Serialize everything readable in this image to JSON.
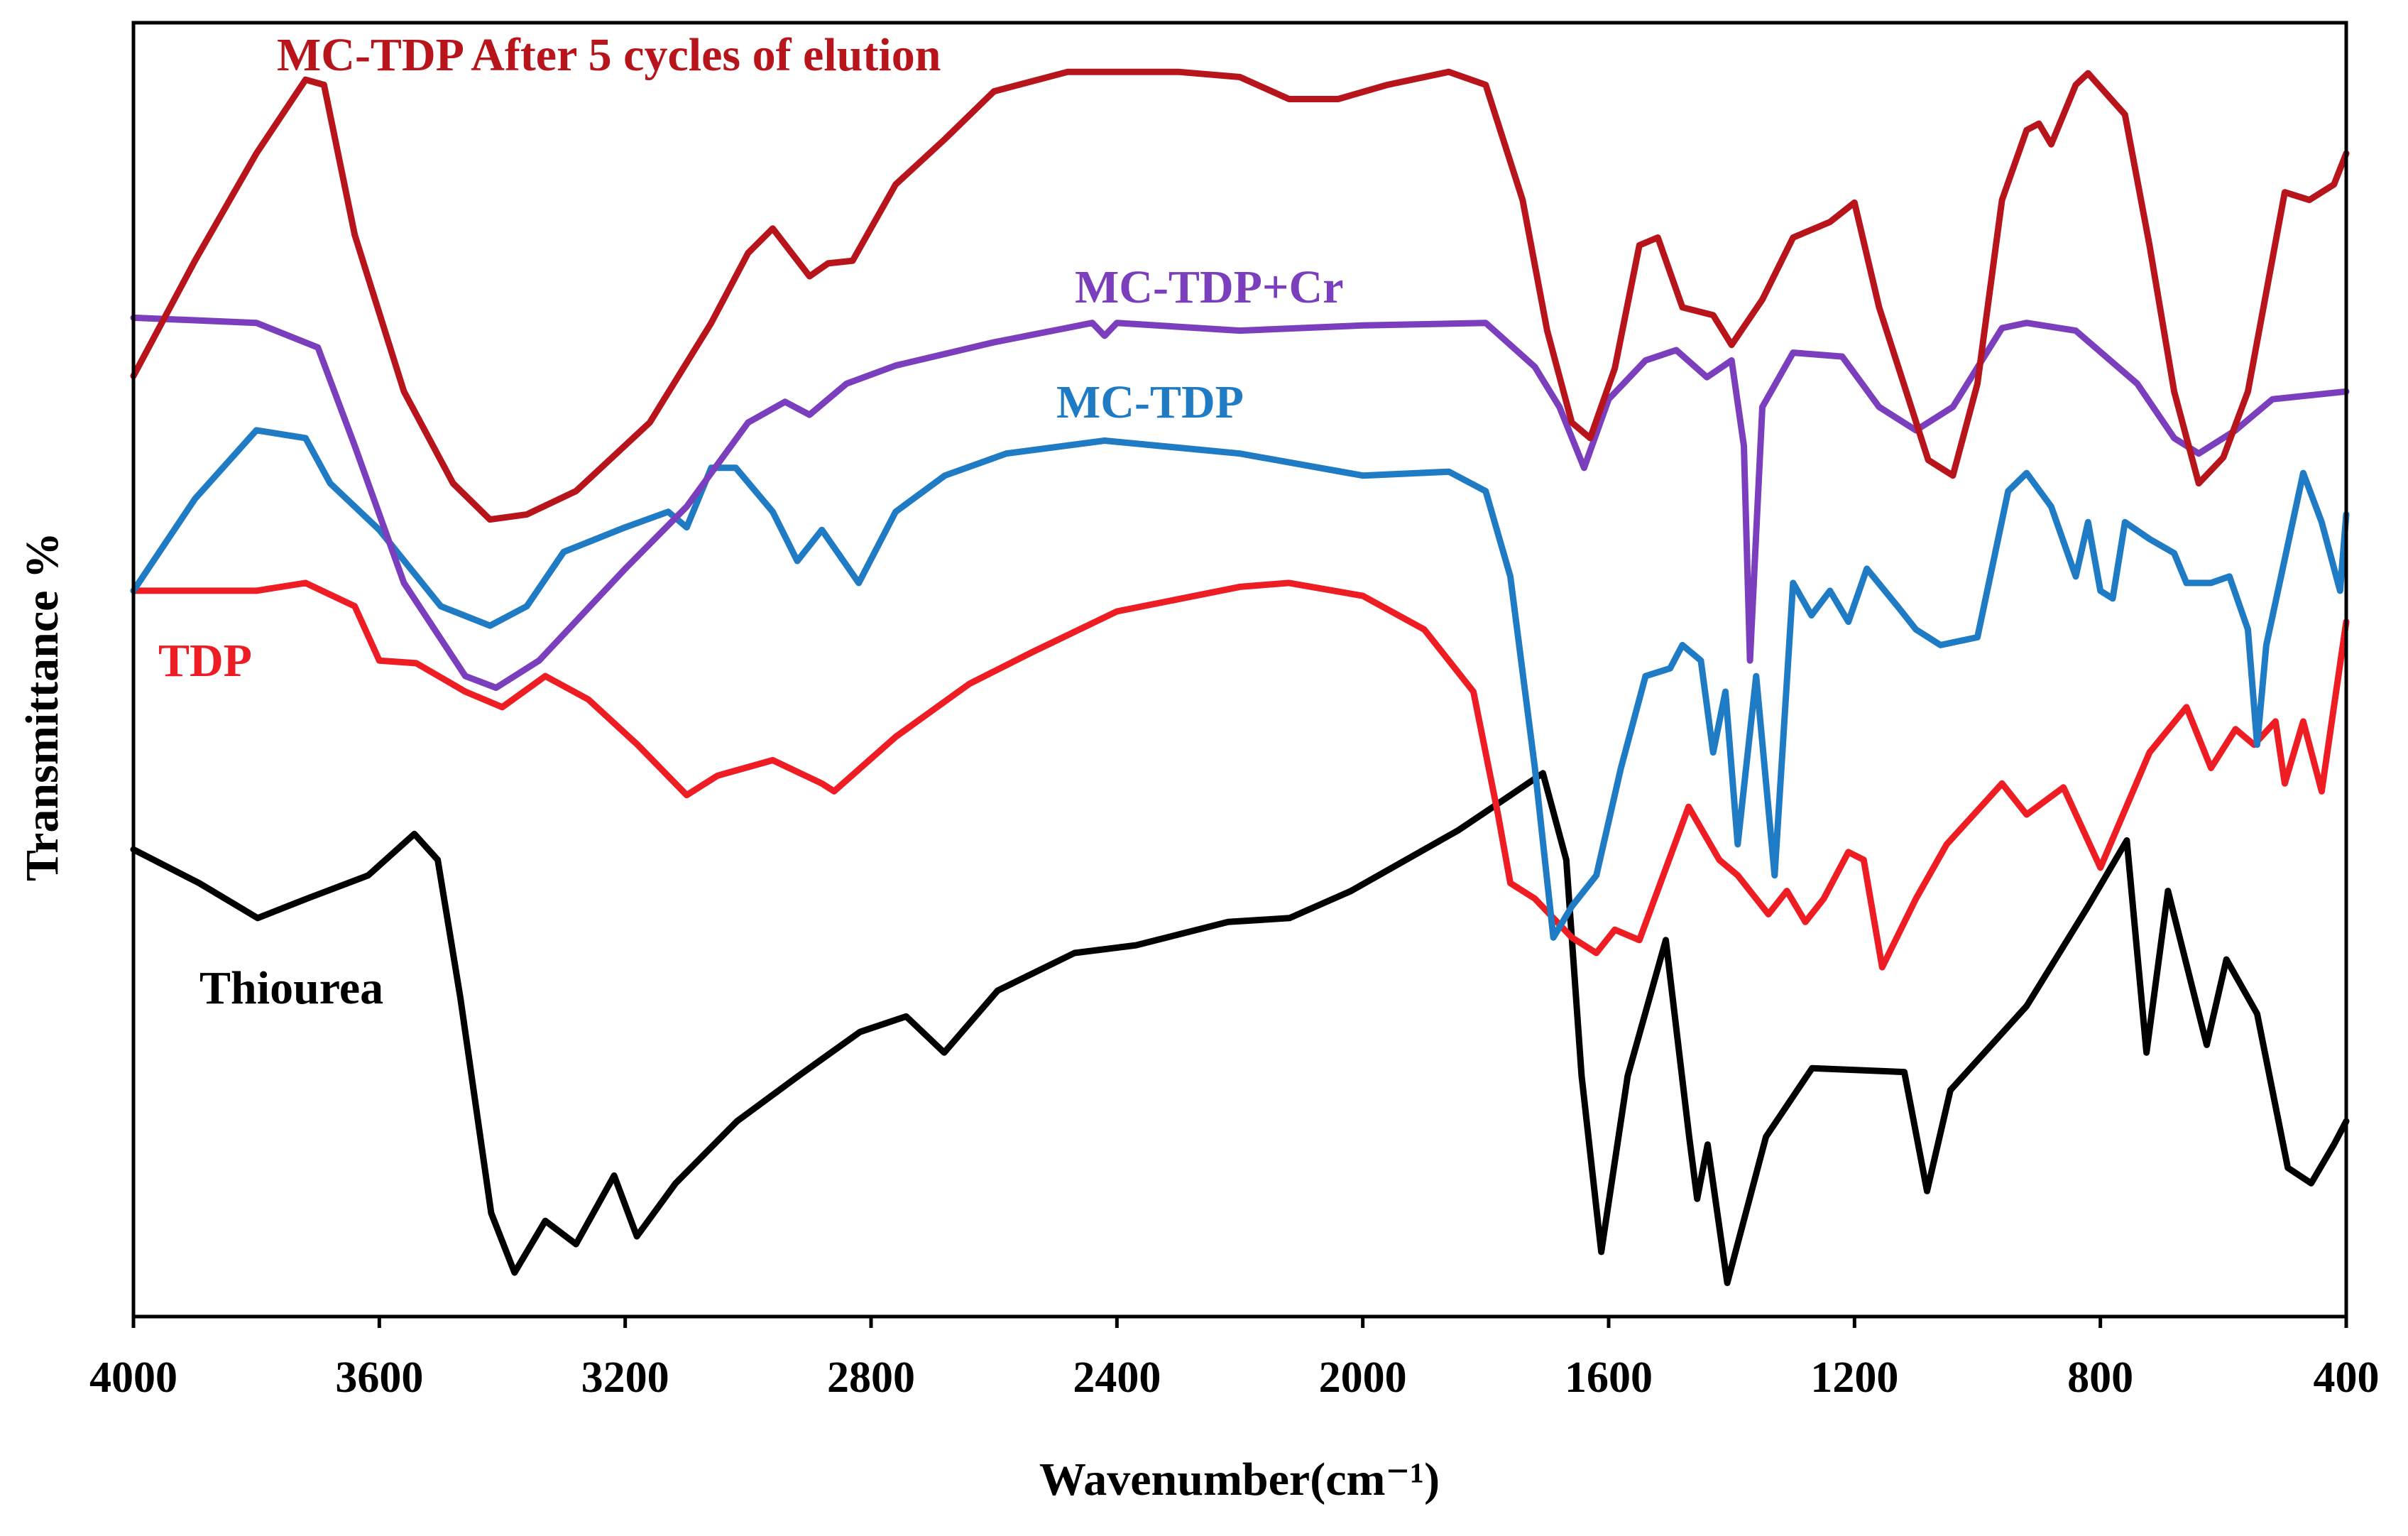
{
  "chart_data": {
    "type": "line",
    "xlabel": "Wavenumber(cm⁻¹)",
    "ylabel": "Transmittance %",
    "xlim": [
      4000,
      400
    ],
    "ylim": [
      0,
      100
    ],
    "xticks": [
      4000,
      3600,
      3200,
      2800,
      2400,
      2000,
      1600,
      1200,
      800,
      400
    ],
    "series": [
      {
        "name": "Thiourea",
        "color": "#000000",
        "x": [
          4000,
          3893,
          3798,
          3718,
          3618,
          3543,
          3505,
          3468,
          3418,
          3380,
          3330,
          3280,
          3218,
          3181,
          3118,
          3018,
          2918,
          2818,
          2743,
          2681,
          2594,
          2469,
          2369,
          2219,
          2119,
          2019,
          1844,
          1769,
          1707,
          1669,
          1644,
          1612,
          1569,
          1507,
          1469,
          1456,
          1439,
          1407,
          1344,
          1269,
          1119,
          1082,
          1044,
          920,
          820,
          757,
          725,
          690,
          627,
          595,
          545,
          495,
          457,
          420,
          400
        ],
        "values": [
          36.1,
          33.5,
          30.8,
          32.3,
          34.1,
          37.3,
          35.3,
          24.6,
          8.0,
          3.4,
          7.4,
          5.6,
          10.9,
          6.2,
          10.3,
          15.1,
          18.6,
          22.0,
          23.2,
          20.4,
          25.2,
          28.1,
          28.7,
          30.5,
          30.8,
          32.9,
          37.6,
          40.0,
          42.0,
          35.3,
          18.6,
          5.0,
          18.6,
          29.1,
          13.9,
          9.1,
          13.3,
          2.6,
          13.9,
          19.2,
          18.9,
          9.7,
          17.5,
          24.0,
          31.7,
          36.8,
          20.4,
          32.9,
          21.0,
          27.6,
          23.4,
          11.5,
          10.3,
          13.3,
          15.1
        ]
      },
      {
        "name": "TDP",
        "color": "#ee1d23",
        "x": [
          4000,
          3800,
          3720,
          3640,
          3600,
          3540,
          3460,
          3400,
          3330,
          3260,
          3180,
          3100,
          3050,
          2960,
          2880,
          2860,
          2760,
          2640,
          2540,
          2400,
          2200,
          2120,
          2000,
          1900,
          1820,
          1780,
          1760,
          1720,
          1660,
          1620,
          1590,
          1550,
          1470,
          1420,
          1390,
          1340,
          1310,
          1280,
          1250,
          1210,
          1185,
          1155,
          1100,
          1050,
          960,
          920,
          860,
          800,
          720,
          660,
          620,
          580,
          550,
          515,
          500,
          470,
          440,
          400
        ],
        "values": [
          56.1,
          56.1,
          56.7,
          54.9,
          50.7,
          50.5,
          48.3,
          47.1,
          49.5,
          47.7,
          44.2,
          40.3,
          41.8,
          43.0,
          41.2,
          40.6,
          44.8,
          48.9,
          51.3,
          54.5,
          56.4,
          56.7,
          55.7,
          53.1,
          48.3,
          38.8,
          33.5,
          32.3,
          29.3,
          28.1,
          29.9,
          29.1,
          39.4,
          35.3,
          34.1,
          31.1,
          32.9,
          30.5,
          32.3,
          35.9,
          35.3,
          27.0,
          32.3,
          36.5,
          41.2,
          38.8,
          40.9,
          34.7,
          43.6,
          47.1,
          42.4,
          45.4,
          44.2,
          46.0,
          41.2,
          46.0,
          40.6,
          53.7
        ]
      },
      {
        "name": "MC-TDP",
        "color": "#1f7bc4",
        "x": [
          4000,
          3900,
          3800,
          3720,
          3680,
          3600,
          3500,
          3420,
          3360,
          3300,
          3200,
          3130,
          3100,
          3060,
          3020,
          2960,
          2920,
          2880,
          2820,
          2760,
          2680,
          2580,
          2420,
          2200,
          2000,
          1860,
          1800,
          1760,
          1720,
          1690,
          1660,
          1620,
          1580,
          1540,
          1500,
          1480,
          1450,
          1430,
          1410,
          1390,
          1360,
          1330,
          1300,
          1270,
          1240,
          1210,
          1180,
          1130,
          1100,
          1060,
          1000,
          950,
          920,
          880,
          840,
          820,
          800,
          780,
          760,
          720,
          680,
          660,
          620,
          590,
          560,
          545,
          530,
          470,
          440,
          410,
          400
        ],
        "values": [
          56.1,
          63.2,
          68.5,
          67.9,
          64.4,
          60.8,
          54.9,
          53.4,
          54.9,
          59.1,
          61.0,
          62.2,
          61.0,
          65.6,
          65.6,
          62.2,
          58.4,
          60.8,
          56.7,
          62.2,
          65.0,
          66.7,
          67.7,
          66.7,
          65.0,
          65.3,
          63.8,
          57.2,
          42.4,
          29.3,
          31.7,
          34.1,
          42.4,
          49.5,
          50.1,
          51.9,
          50.7,
          43.6,
          48.3,
          36.5,
          49.5,
          34.1,
          56.7,
          54.2,
          56.1,
          53.7,
          57.8,
          54.9,
          53.1,
          51.9,
          52.5,
          63.8,
          65.2,
          62.6,
          57.2,
          61.4,
          56.1,
          55.5,
          61.4,
          60.1,
          59.0,
          56.7,
          56.7,
          57.2,
          53.1,
          44.2,
          51.9,
          65.2,
          61.4,
          56.1,
          62.0
        ]
      },
      {
        "name": "MC-TDP+Cr",
        "color": "#7b3fbe",
        "x": [
          4000,
          3800,
          3700,
          3640,
          3560,
          3460,
          3410,
          3340,
          3200,
          3100,
          3000,
          2940,
          2900,
          2840,
          2760,
          2600,
          2440,
          2420,
          2400,
          2200,
          2000,
          1800,
          1720,
          1680,
          1640,
          1600,
          1540,
          1490,
          1440,
          1400,
          1380,
          1370,
          1350,
          1300,
          1220,
          1160,
          1100,
          1040,
          960,
          920,
          840,
          740,
          680,
          640,
          580,
          520,
          400
        ],
        "values": [
          77.2,
          76.8,
          74.9,
          67.3,
          56.7,
          49.5,
          48.6,
          50.7,
          57.8,
          62.6,
          69.1,
          70.7,
          69.7,
          72.1,
          73.5,
          75.3,
          76.8,
          75.8,
          76.8,
          76.2,
          76.6,
          76.8,
          73.4,
          70.3,
          65.6,
          70.9,
          73.9,
          74.7,
          72.6,
          73.9,
          67.3,
          50.7,
          70.3,
          74.5,
          74.2,
          70.3,
          68.5,
          70.3,
          76.4,
          76.8,
          76.2,
          72.1,
          67.9,
          66.7,
          68.5,
          70.9,
          71.5
        ]
      },
      {
        "name": "MC-TDP After 5 cycles of elution",
        "color": "#b8141c",
        "x": [
          4000,
          3900,
          3800,
          3720,
          3690,
          3640,
          3560,
          3480,
          3420,
          3360,
          3280,
          3160,
          3060,
          3000,
          2960,
          2900,
          2870,
          2830,
          2760,
          2680,
          2600,
          2480,
          2300,
          2200,
          2120,
          2040,
          1960,
          1860,
          1800,
          1740,
          1700,
          1660,
          1630,
          1590,
          1550,
          1520,
          1480,
          1430,
          1400,
          1350,
          1300,
          1240,
          1200,
          1160,
          1120,
          1080,
          1040,
          1000,
          960,
          920,
          900,
          880,
          840,
          820,
          760,
          720,
          680,
          640,
          600,
          560,
          500,
          460,
          420,
          400
        ],
        "values": [
          72.7,
          81.6,
          89.9,
          95.6,
          95.2,
          83.6,
          71.5,
          64.4,
          61.6,
          62.0,
          63.8,
          69.1,
          76.8,
          82.2,
          84.1,
          80.4,
          81.4,
          81.6,
          87.5,
          91.0,
          94.7,
          96.2,
          96.2,
          95.8,
          94.1,
          94.1,
          95.2,
          96.2,
          95.2,
          86.3,
          76.2,
          69.1,
          67.9,
          73.3,
          82.8,
          83.4,
          78.0,
          77.4,
          75.1,
          78.6,
          83.4,
          84.6,
          86.1,
          78.0,
          72.1,
          66.2,
          65.0,
          72.1,
          86.3,
          91.7,
          92.2,
          90.6,
          95.2,
          96.1,
          92.9,
          82.8,
          71.5,
          64.4,
          66.4,
          71.5,
          86.9,
          86.3,
          87.5,
          89.9
        ]
      }
    ]
  }
}
